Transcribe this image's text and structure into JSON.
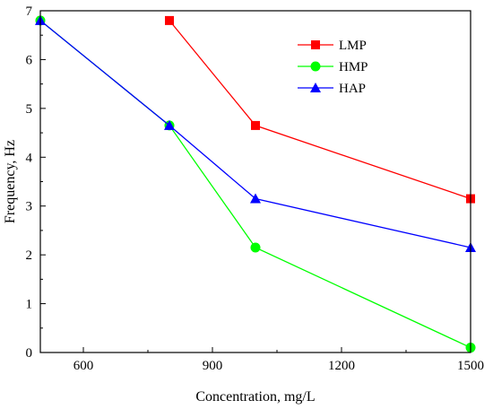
{
  "chart_data": {
    "type": "line",
    "xlabel": "Concentration, mg/L",
    "ylabel": "Frequency, Hz",
    "xlim": [
      500,
      1500
    ],
    "ylim": [
      0,
      7
    ],
    "x_ticks": [
      600,
      900,
      1200,
      1500
    ],
    "y_ticks": [
      0,
      1,
      2,
      3,
      4,
      5,
      6,
      7
    ],
    "grid": false,
    "legend_position": "top-right",
    "series": [
      {
        "name": "LMP",
        "color": "#ff0000",
        "marker": "square",
        "x": [
          800,
          1000,
          1500
        ],
        "y": [
          6.8,
          4.65,
          3.15
        ]
      },
      {
        "name": "HMP",
        "color": "#00ff00",
        "marker": "circle",
        "x": [
          500,
          800,
          1000,
          1500
        ],
        "y": [
          6.8,
          4.65,
          2.15,
          0.1
        ]
      },
      {
        "name": "HAP",
        "color": "#0000ff",
        "marker": "triangle",
        "x": [
          500,
          800,
          1000,
          1500
        ],
        "y": [
          6.8,
          4.65,
          3.15,
          2.15
        ]
      }
    ]
  }
}
